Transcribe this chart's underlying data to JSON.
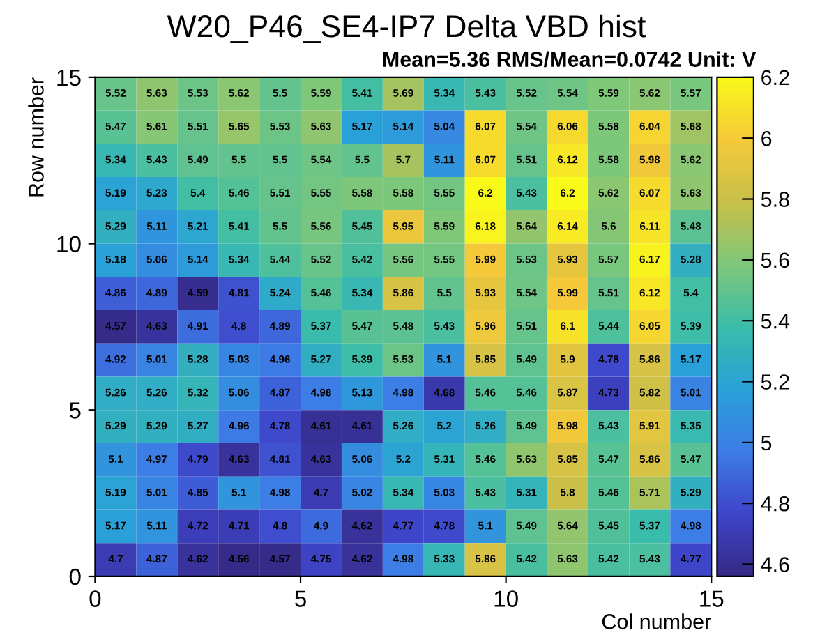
{
  "chart_data": {
    "type": "heatmap",
    "title": "W20_P46_SE4-IP7 Delta VBD hist",
    "xlabel": "Col number",
    "ylabel": "Row number",
    "annotations": [
      "Mean=5.36 RMS/Mean=0.0742 Unit: V"
    ],
    "xlim": [
      0,
      15
    ],
    "xticks": [
      0,
      5,
      10,
      15
    ],
    "ylim": [
      0,
      15
    ],
    "yticks": [
      0,
      5,
      10,
      15
    ],
    "clim": [
      4.56,
      6.2
    ],
    "cticks": [
      4.6,
      4.8,
      5,
      5.2,
      5.4,
      5.6,
      5.8,
      6,
      6.2
    ],
    "data_labels": true,
    "cells": [
      [
        5.52,
        5.63,
        5.53,
        5.62,
        5.5,
        5.59,
        5.41,
        5.69,
        5.34,
        5.43,
        5.52,
        5.54,
        5.59,
        5.62,
        5.57
      ],
      [
        5.47,
        5.61,
        5.51,
        5.65,
        5.53,
        5.63,
        5.17,
        5.14,
        5.04,
        6.07,
        5.54,
        6.06,
        5.58,
        6.04,
        5.68
      ],
      [
        5.34,
        5.43,
        5.49,
        5.5,
        5.5,
        5.54,
        5.5,
        5.7,
        5.11,
        6.07,
        5.51,
        6.12,
        5.58,
        5.98,
        5.62
      ],
      [
        5.19,
        5.23,
        5.4,
        5.46,
        5.51,
        5.55,
        5.58,
        5.58,
        5.55,
        6.2,
        5.43,
        6.2,
        5.62,
        6.07,
        5.63
      ],
      [
        5.29,
        5.11,
        5.21,
        5.41,
        5.5,
        5.56,
        5.45,
        5.95,
        5.59,
        6.18,
        5.64,
        6.14,
        5.6,
        6.11,
        5.48
      ],
      [
        5.18,
        5.06,
        5.14,
        5.34,
        5.44,
        5.52,
        5.42,
        5.56,
        5.55,
        5.99,
        5.53,
        5.93,
        5.57,
        6.17,
        5.28
      ],
      [
        4.86,
        4.89,
        4.59,
        4.81,
        5.24,
        5.46,
        5.34,
        5.86,
        5.5,
        5.93,
        5.54,
        5.99,
        5.51,
        6.12,
        5.4
      ],
      [
        4.57,
        4.63,
        4.91,
        4.8,
        4.89,
        5.37,
        5.47,
        5.48,
        5.43,
        5.96,
        5.51,
        6.1,
        5.44,
        6.05,
        5.39
      ],
      [
        4.92,
        5.01,
        5.28,
        5.03,
        4.96,
        5.27,
        5.39,
        5.53,
        5.1,
        5.85,
        5.49,
        5.9,
        4.78,
        5.86,
        5.17
      ],
      [
        5.26,
        5.26,
        5.32,
        5.06,
        4.87,
        4.98,
        5.13,
        4.98,
        4.68,
        5.46,
        5.46,
        5.87,
        4.73,
        5.82,
        5.01
      ],
      [
        5.29,
        5.29,
        5.27,
        4.96,
        4.78,
        4.61,
        4.61,
        5.26,
        5.2,
        5.26,
        5.49,
        5.98,
        5.43,
        5.91,
        5.35
      ],
      [
        5.1,
        4.97,
        4.79,
        4.63,
        4.81,
        4.63,
        5.06,
        5.2,
        5.31,
        5.46,
        5.63,
        5.85,
        5.47,
        5.86,
        5.47
      ],
      [
        5.19,
        5.01,
        4.85,
        5.1,
        4.98,
        4.7,
        5.02,
        5.34,
        5.03,
        5.43,
        5.31,
        5.8,
        5.46,
        5.71,
        5.29
      ],
      [
        5.17,
        5.11,
        4.72,
        4.71,
        4.8,
        4.9,
        4.62,
        4.77,
        4.78,
        5.1,
        5.49,
        5.64,
        5.45,
        5.37,
        4.98
      ],
      [
        4.7,
        4.87,
        4.62,
        4.56,
        4.57,
        4.75,
        4.62,
        4.98,
        5.33,
        5.86,
        5.42,
        5.63,
        5.42,
        5.43,
        4.77
      ]
    ]
  }
}
